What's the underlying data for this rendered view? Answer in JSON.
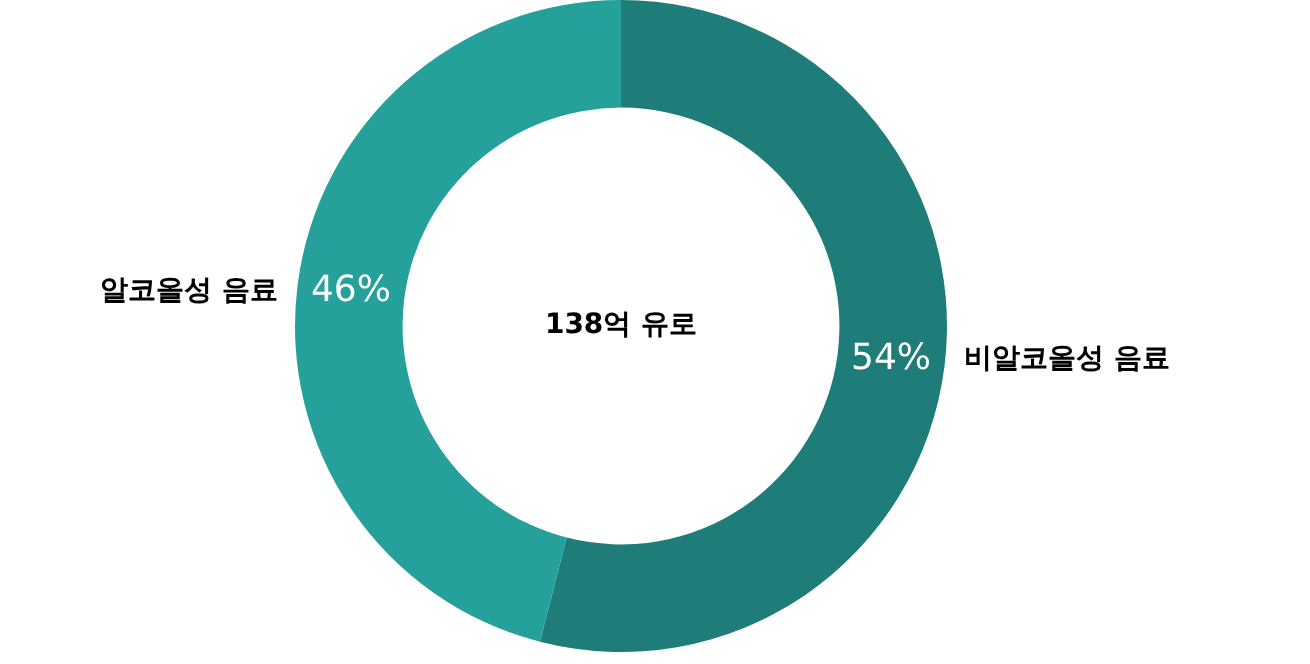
{
  "chart_data": {
    "type": "donut",
    "categories": [
      "비알코올성 음료",
      "알코올성 음료"
    ],
    "values": [
      54,
      46
    ],
    "colors": [
      "#1e7d78",
      "#26a09a"
    ],
    "value_labels": [
      "54%",
      "46%"
    ],
    "annotations": [
      "138억 유로"
    ],
    "legend": false
  }
}
